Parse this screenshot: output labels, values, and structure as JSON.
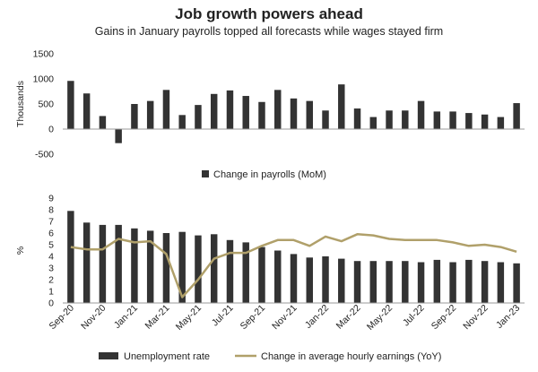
{
  "title": "Job growth powers ahead",
  "subtitle": "Gains in January payrolls topped all forecasts while wages stayed firm",
  "chart_data": [
    {
      "type": "bar",
      "ylabel": "Thousands",
      "ylim": [
        -500,
        1500
      ],
      "yticks": [
        "1500",
        "1000",
        "500",
        "0",
        "-500"
      ],
      "grid": false,
      "legend_position": "bottom",
      "series": [
        {
          "name": "Change in payrolls (MoM)",
          "color": "#333333",
          "values": [
            960,
            710,
            260,
            -280,
            500,
            560,
            780,
            280,
            480,
            700,
            770,
            660,
            540,
            780,
            610,
            560,
            370,
            890,
            410,
            240,
            370,
            370,
            560,
            350,
            350,
            320,
            290,
            240,
            517
          ]
        }
      ],
      "categories": [
        "Sep-20",
        "Oct-20",
        "Nov-20",
        "Dec-20",
        "Jan-21",
        "Feb-21",
        "Mar-21",
        "Apr-21",
        "May-21",
        "Jun-21",
        "Jul-21",
        "Aug-21",
        "Sep-21",
        "Oct-21",
        "Nov-21",
        "Dec-21",
        "Jan-22",
        "Feb-22",
        "Mar-22",
        "Apr-22",
        "May-22",
        "Jun-22",
        "Jul-22",
        "Aug-22",
        "Sep-22",
        "Oct-22",
        "Nov-22",
        "Dec-22",
        "Jan-23"
      ]
    },
    {
      "type": "bar+line",
      "ylabel": "%",
      "ylim": [
        0,
        9
      ],
      "yticks": [
        "0",
        "1",
        "2",
        "3",
        "4",
        "5",
        "6",
        "7",
        "8",
        "9"
      ],
      "xtick_labels": [
        "Sep-20",
        "Nov-20",
        "Jan-21",
        "Mar-21",
        "May-21",
        "Jul-21",
        "Sep-21",
        "Nov-21",
        "Jan-22",
        "Mar-22",
        "May-22",
        "Jul-22",
        "Sep-22",
        "Nov-22",
        "Jan-23"
      ],
      "grid": false,
      "legend_position": "bottom",
      "categories": [
        "Sep-20",
        "Oct-20",
        "Nov-20",
        "Dec-20",
        "Jan-21",
        "Feb-21",
        "Mar-21",
        "Apr-21",
        "May-21",
        "Jun-21",
        "Jul-21",
        "Aug-21",
        "Sep-21",
        "Oct-21",
        "Nov-21",
        "Dec-21",
        "Jan-22",
        "Feb-22",
        "Mar-22",
        "Apr-22",
        "May-22",
        "Jun-22",
        "Jul-22",
        "Aug-22",
        "Sep-22",
        "Oct-22",
        "Nov-22",
        "Dec-22",
        "Jan-23"
      ],
      "series": [
        {
          "name": "Unemployment rate",
          "kind": "bar",
          "color": "#333333",
          "values": [
            7.9,
            6.9,
            6.7,
            6.7,
            6.4,
            6.2,
            6.0,
            6.1,
            5.8,
            5.9,
            5.4,
            5.2,
            4.8,
            4.5,
            4.2,
            3.9,
            4.0,
            3.8,
            3.6,
            3.6,
            3.6,
            3.6,
            3.5,
            3.7,
            3.5,
            3.7,
            3.6,
            3.5,
            3.4
          ]
        },
        {
          "name": "Change in average hourly earnings (YoY)",
          "kind": "line",
          "color": "#b0a06a",
          "values": [
            4.8,
            4.6,
            4.6,
            5.5,
            5.2,
            5.3,
            4.2,
            0.5,
            2.0,
            3.8,
            4.3,
            4.3,
            4.9,
            5.4,
            5.4,
            4.9,
            5.7,
            5.3,
            5.9,
            5.8,
            5.5,
            5.4,
            5.4,
            5.4,
            5.2,
            4.9,
            5.0,
            4.8,
            4.4
          ]
        }
      ]
    }
  ]
}
